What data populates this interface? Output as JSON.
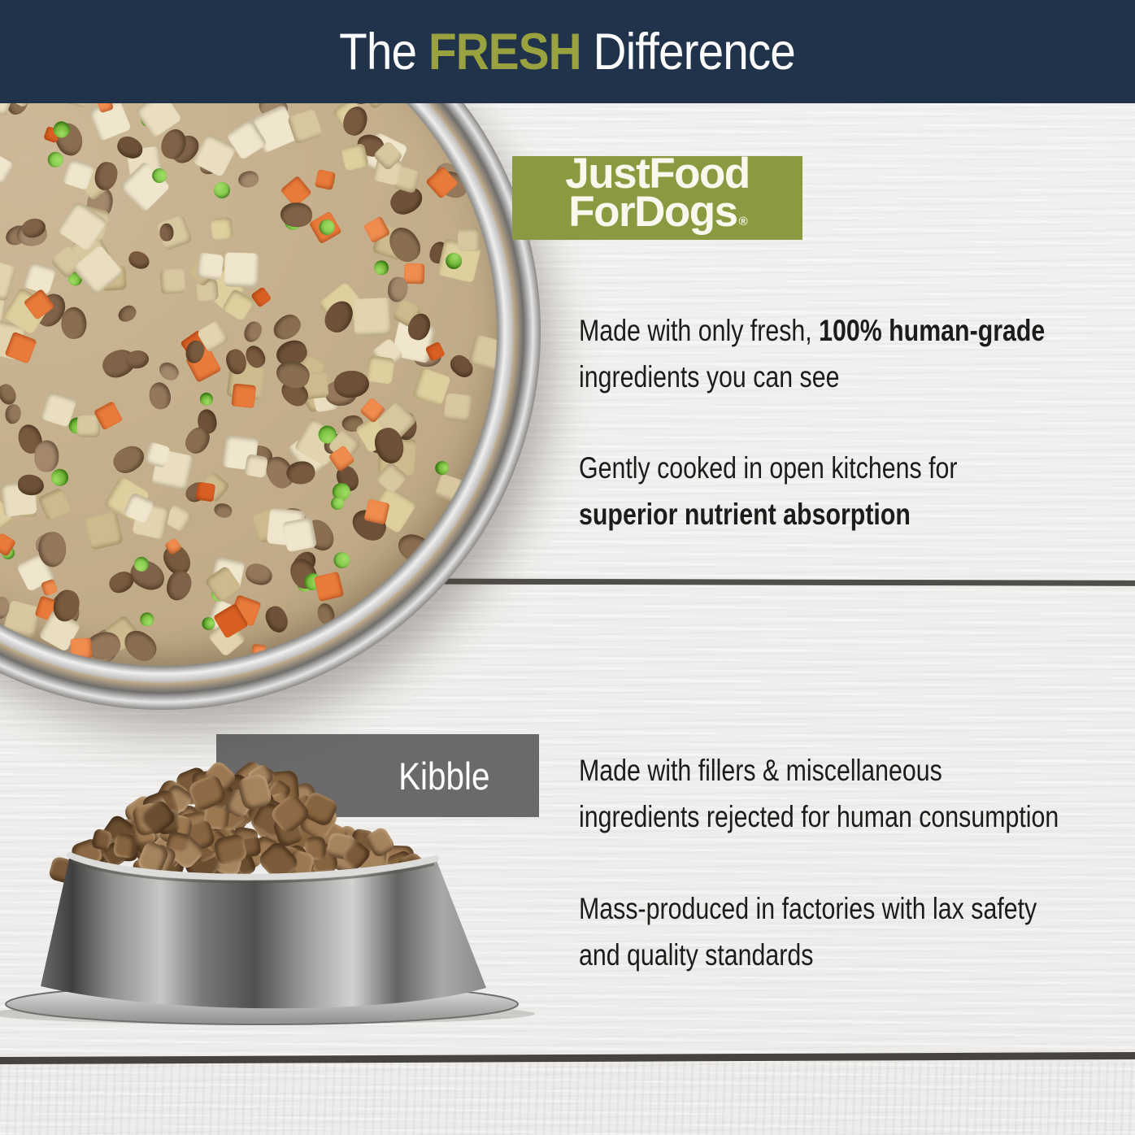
{
  "header": {
    "title_prefix": "The ",
    "title_highlight": "FRESH",
    "title_suffix": " Difference"
  },
  "brand": {
    "line1": "JustFood",
    "line2": "ForDogs",
    "registered": "®"
  },
  "fresh_section": {
    "point1_regular": "Made with only fresh, ",
    "point1_bold": "100% human-grade",
    "point1_line2": "ingredients you can see",
    "point2_line1": "Gently cooked in open kitchens for",
    "point2_bold_line2": "superior nutrient absorption"
  },
  "kibble_section": {
    "label": "Kibble",
    "point1_line1": "Made with fillers & miscellaneous",
    "point1_line2": "ingredients rejected for human consumption",
    "point2_line1": "Mass-produced in factories with lax safety",
    "point2_line2": "and quality standards"
  },
  "colors": {
    "navy": "#20334a",
    "olive": "#9aa23f",
    "logo_green": "#8a9a40",
    "gray_box": "#6a6a6a",
    "text": "#1d1c1a",
    "wood": "#efeeec",
    "groove": "#34312c"
  },
  "palettes": {
    "potato": [
      "#e9dfc0",
      "#ddcf9e",
      "#d8c8a0",
      "#efe6cd",
      "#cdbb8d",
      "#e2d4ae"
    ],
    "beef": [
      "#8a6e50",
      "#7a5a3f",
      "#95785c",
      "#6e5138",
      "#a3886c",
      "#7f6247"
    ],
    "pea": [
      "#69b52e",
      "#7cc544",
      "#55a21f"
    ],
    "carrot": [
      "#e87a3a",
      "#d95f23",
      "#ef8c4e"
    ],
    "kibble": [
      "#8d6a45",
      "#7a5a38",
      "#9c7851",
      "#6b4e30",
      "#a5835d",
      "#86643f"
    ]
  }
}
